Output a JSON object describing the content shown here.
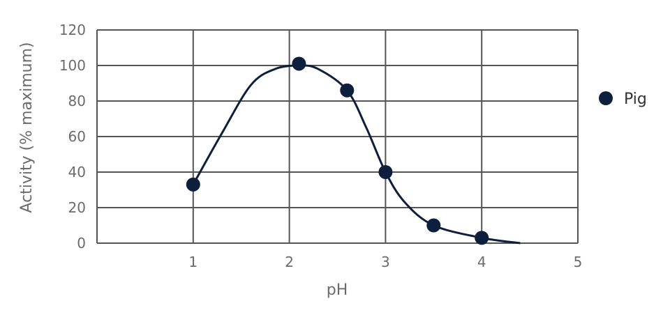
{
  "chart_data": {
    "type": "scatter",
    "xlabel": "pH",
    "ylabel": "Activity (% maximum)",
    "xlim": [
      0,
      5
    ],
    "ylim": [
      0,
      120
    ],
    "x_ticks": [
      1,
      2,
      3,
      4,
      5
    ],
    "y_ticks": [
      0,
      20,
      40,
      60,
      80,
      100,
      120
    ],
    "grid": true,
    "legend_position": "right",
    "colors": {
      "series": "#0d1f3c",
      "grid": "#555555",
      "text": "#6b6b6b"
    },
    "series": [
      {
        "name": "Pig",
        "x": [
          1.0,
          2.1,
          2.6,
          3.0,
          3.5,
          4.0
        ],
        "y": [
          33,
          101,
          86,
          40,
          10,
          3
        ]
      }
    ],
    "fitted_curve": {
      "x": [
        1.0,
        1.3,
        1.6,
        1.85,
        2.1,
        2.3,
        2.6,
        2.8,
        3.0,
        3.2,
        3.5,
        4.0,
        4.4
      ],
      "y": [
        33,
        62,
        89,
        98,
        100,
        98,
        86,
        65,
        40,
        23,
        10,
        3,
        0
      ]
    }
  }
}
